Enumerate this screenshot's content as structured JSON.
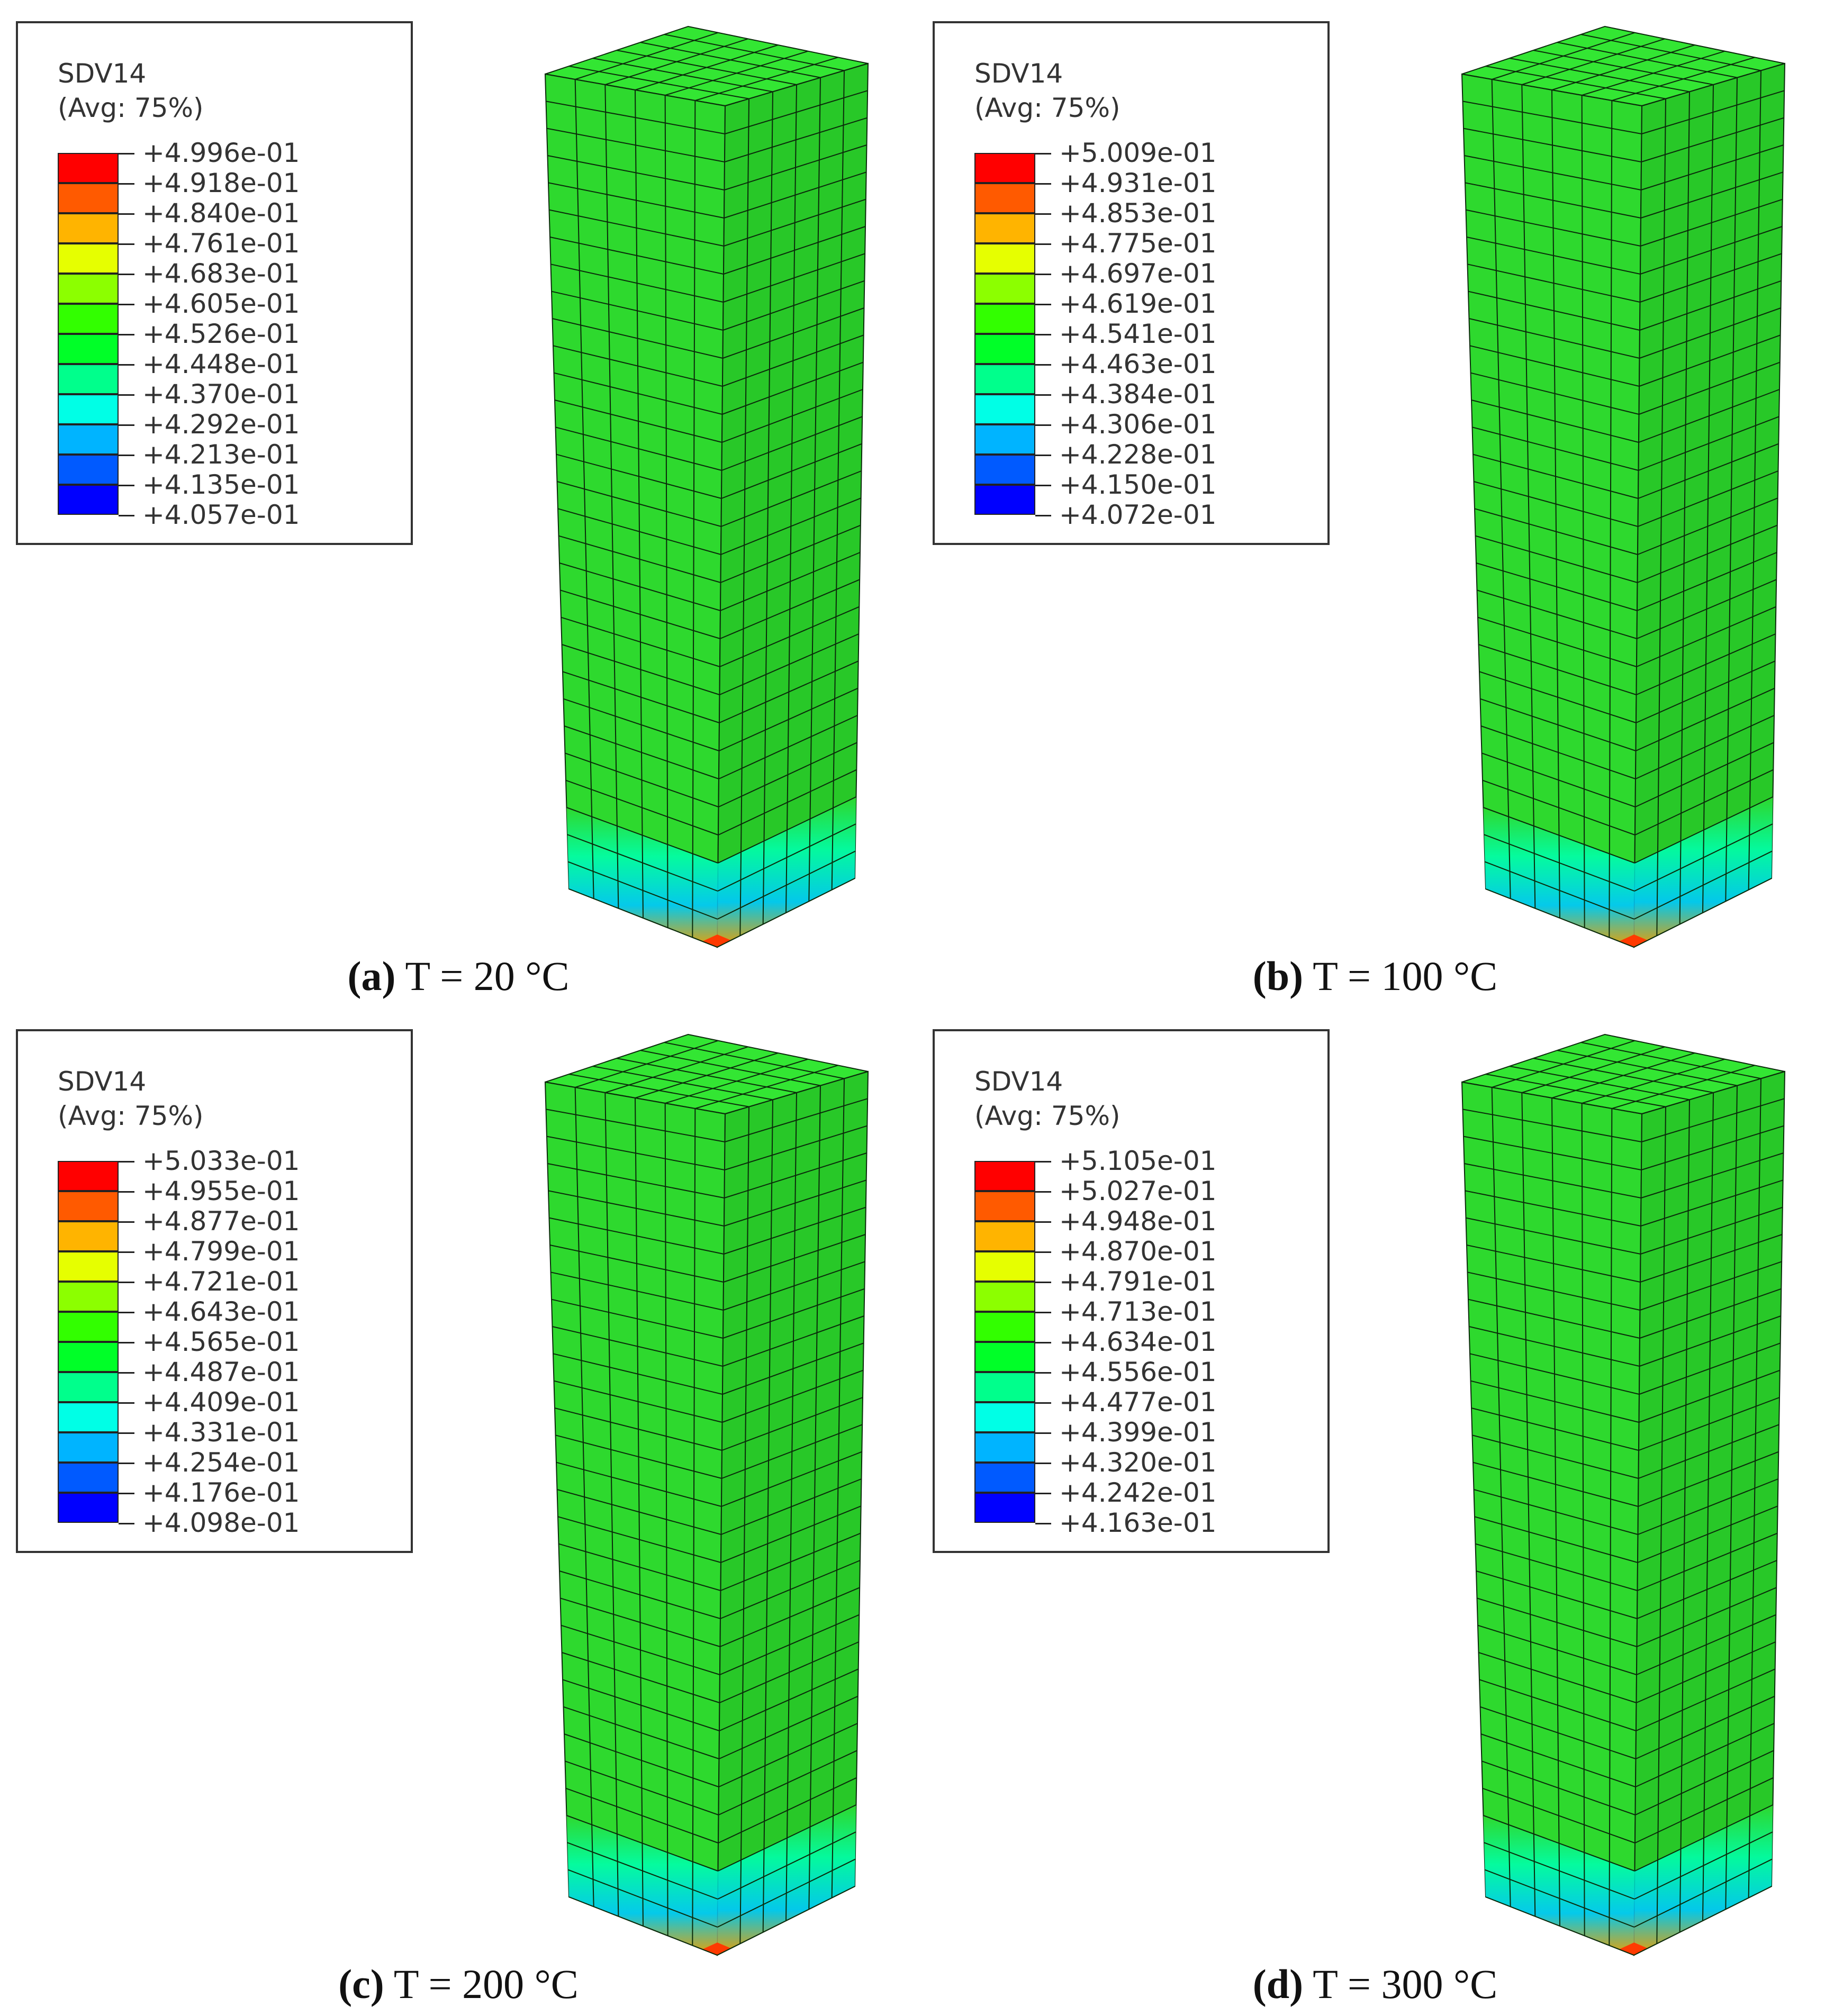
{
  "panels": [
    {
      "legend": {
        "title": "SDV14",
        "subtitle": "(Avg: 75%)",
        "values": [
          "+4.996e-01",
          "+4.918e-01",
          "+4.840e-01",
          "+4.761e-01",
          "+4.683e-01",
          "+4.605e-01",
          "+4.526e-01",
          "+4.448e-01",
          "+4.370e-01",
          "+4.292e-01",
          "+4.213e-01",
          "+4.135e-01",
          "+4.057e-01"
        ]
      },
      "caption": {
        "letter": "(a)",
        "text": " T = 20 °C"
      }
    },
    {
      "legend": {
        "title": "SDV14",
        "subtitle": "(Avg: 75%)",
        "values": [
          "+5.009e-01",
          "+4.931e-01",
          "+4.853e-01",
          "+4.775e-01",
          "+4.697e-01",
          "+4.619e-01",
          "+4.541e-01",
          "+4.463e-01",
          "+4.384e-01",
          "+4.306e-01",
          "+4.228e-01",
          "+4.150e-01",
          "+4.072e-01"
        ]
      },
      "caption": {
        "letter": "(b)",
        "text": " T = 100 °C"
      }
    },
    {
      "legend": {
        "title": "SDV14",
        "subtitle": "(Avg: 75%)",
        "values": [
          "+5.033e-01",
          "+4.955e-01",
          "+4.877e-01",
          "+4.799e-01",
          "+4.721e-01",
          "+4.643e-01",
          "+4.565e-01",
          "+4.487e-01",
          "+4.409e-01",
          "+4.331e-01",
          "+4.254e-01",
          "+4.176e-01",
          "+4.098e-01"
        ]
      },
      "caption": {
        "letter": "(c)",
        "text": " T = 200 °C"
      }
    },
    {
      "legend": {
        "title": "SDV14",
        "subtitle": "(Avg: 75%)",
        "values": [
          "+5.105e-01",
          "+5.027e-01",
          "+4.948e-01",
          "+4.870e-01",
          "+4.791e-01",
          "+4.713e-01",
          "+4.634e-01",
          "+4.556e-01",
          "+4.477e-01",
          "+4.399e-01",
          "+4.320e-01",
          "+4.242e-01",
          "+4.163e-01"
        ]
      },
      "caption": {
        "letter": "(d)",
        "text": " T = 300 °C"
      }
    }
  ],
  "colors": {
    "scale": [
      "#ff0000",
      "#ff5a00",
      "#ffb400",
      "#e6ff00",
      "#8cff00",
      "#32ff00",
      "#00ff28",
      "#00ff8c",
      "#00ffe6",
      "#00b4ff",
      "#005aff",
      "#0000ff"
    ],
    "mesh_fill": "#2ed92e",
    "mesh_top": "#33e633",
    "mesh_side": "#28c828",
    "mesh_line": "#0a2a0a"
  }
}
